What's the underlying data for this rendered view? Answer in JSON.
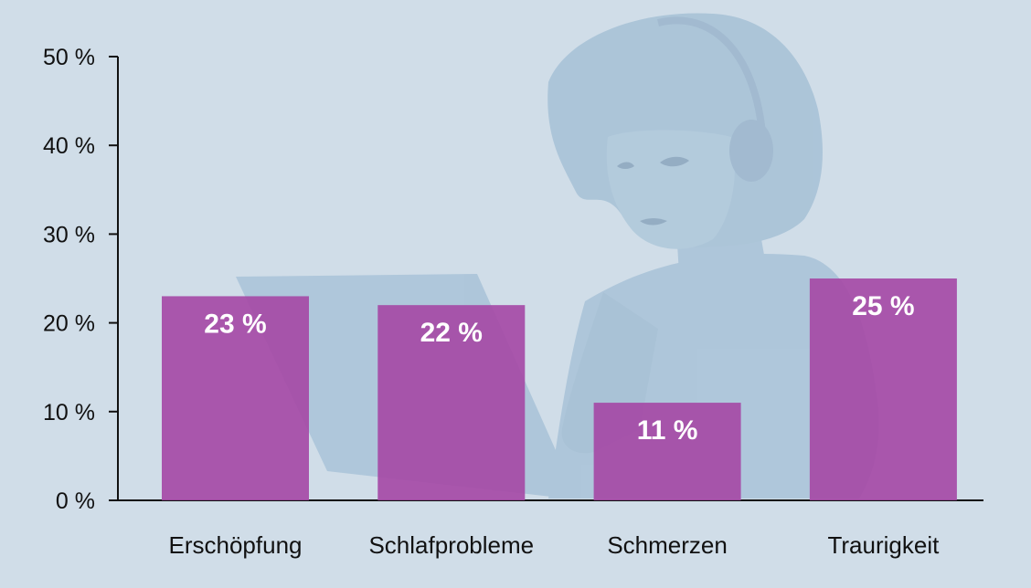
{
  "colors": {
    "background": "#d0dde8",
    "bar": "#a54aa6",
    "silhouette": "#a6c1d6",
    "axis": "#111111",
    "data_label": "#ffffff"
  },
  "illustration": {
    "icon": "person-with-headphones-at-laptop-silhouette"
  },
  "chart_data": {
    "type": "bar",
    "title": "",
    "xlabel": "",
    "ylabel": "",
    "categories": [
      "Erschöpfung",
      "Schlafprobleme",
      "Schmerzen",
      "Traurigkeit"
    ],
    "values": [
      23,
      22,
      11,
      25
    ],
    "data_labels": [
      "23 %",
      "22 %",
      "11 %",
      "25 %"
    ],
    "ylim": [
      0,
      50
    ],
    "yticks": [
      0,
      10,
      20,
      30,
      40,
      50
    ],
    "ytick_labels": [
      "0 %",
      "10 %",
      "20 %",
      "30 %",
      "40 %",
      "50 %"
    ],
    "grid": false,
    "legend": "none"
  }
}
